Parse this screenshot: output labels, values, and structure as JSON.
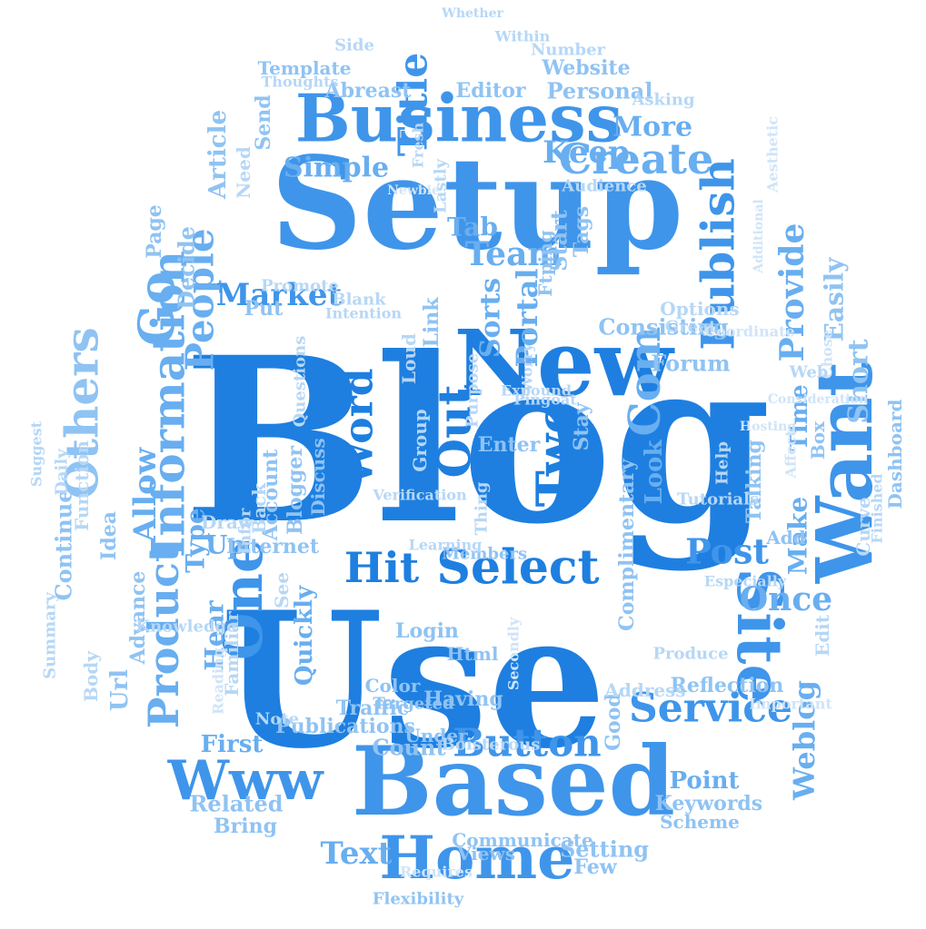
{
  "colors": {
    "background": "#ffffff",
    "c1": "#1e7fe0",
    "c2": "#3f95ea",
    "c3": "#68aef0",
    "c4": "#8fc3f3",
    "c5": "#b6d7f6",
    "c6": "#cfe4f8"
  },
  "words": {
    "blog": "Blog",
    "use": "Use",
    "setup": "Setup",
    "new": "New",
    "based": "Based",
    "business": "Business",
    "home": "Home",
    "site": "Site",
    "want": "Want",
    "www": "Www",
    "one": "One",
    "com": "Com",
    "hit": "Hit",
    "select": "Select",
    "two": "Two",
    "out": "Out",
    "word": "Word",
    "title": "Title",
    "create": "Create",
    "keep": "Keep",
    "publish": "Publish",
    "service": "Service",
    "post": "Post",
    "button": "Button",
    "information": "Information",
    "others": "Others",
    "product": "Product",
    "people": "People",
    "market": "Market",
    "allow": "Allow",
    "go": "Go",
    "simple": "Simple",
    "more": "More",
    "provide": "Provide",
    "easily": "Easily",
    "short": "Short",
    "weblog": "Weblog",
    "text": "Text",
    "team": "Team",
    "sorts": "Sorts",
    "portal": "Portal",
    "look": "Look",
    "once": "Once",
    "make": "Make",
    "time": "Time",
    "talking": "Talking",
    "point": "Point",
    "quickly": "Quickly",
    "first": "First",
    "hear": "Hear",
    "up": "Up",
    "type": "Type",
    "continue": "Continue",
    "idea": "Idea",
    "personal": "Personal",
    "editor": "Editor",
    "abreast": "Abreast",
    "website": "Website",
    "template": "Template",
    "article": "Article",
    "decide": "Decide",
    "page": "Page",
    "tab": "Tab",
    "start": "Start",
    "tags": "Tags",
    "ftping": "Ftping",
    "consisting": "Consisting",
    "forum": "Forum",
    "link": "Link",
    "internet": "Internet",
    "count": "Count",
    "related": "Related",
    "bring": "Bring",
    "publications": "Publications",
    "url": "Url",
    "advance": "Advance",
    "login": "Login",
    "html": "Html",
    "traffic": "Traffic",
    "color": "Color",
    "under": "Under",
    "having": "Having",
    "targeted": "Targeted",
    "setting": "Setting",
    "few": "Few",
    "communicate": "Communicate",
    "views": "Views",
    "flexibility": "Flexibility",
    "keywords": "Keywords",
    "scheme": "Scheme",
    "reflection": "Reflection",
    "dashboard": "Dashboard",
    "put": "Put",
    "send": "Send",
    "side": "Side",
    "number": "Number",
    "within": "Within",
    "whether": "Whether",
    "need": "Need",
    "stay": "Stay",
    "add": "Add",
    "box": "Box",
    "curve": "Curve",
    "members": "Members",
    "purpose": "Purpose",
    "tutorials": "Tutorials",
    "complimentary": "Complimentary",
    "boisterous": "Boisterous",
    "good": "Good",
    "note": "Note",
    "knowledge": "Knowledge",
    "familiar": "Familiar",
    "account": "Account",
    "blogger": "Blogger",
    "discuss": "Discuss",
    "questions": "Questions",
    "function": "Function",
    "daily": "Daily",
    "summary": "Summary",
    "suggest": "Suggest",
    "body": "Body",
    "edit": "Edit",
    "produce": "Produce",
    "address": "Address",
    "loud": "Loud",
    "options": "Options",
    "great": "Great",
    "lastly": "Lastly",
    "blank": "Blank",
    "promote": "Promote",
    "fresh": "Fresh",
    "asking": "Asking",
    "audience": "Audience",
    "thoughts": "Thoughts",
    "intention": "Intention",
    "back": "Back",
    "see": "See",
    "draw": "Draw",
    "infor": "Infor",
    "group": "Group",
    "thing": "Thing",
    "learning": "Learning",
    "expound": "Expound",
    "worry": "Worry",
    "pingoat": "Pingoat",
    "verification": "Verification",
    "especially": "Especially",
    "finished": "Finished",
    "requires": "Requires",
    "reading": "Reading",
    "important": "Important",
    "secondly": "Secondly",
    "newbie": "Newbie",
    "affect": "Affect",
    "hosting": "Hosting",
    "aesthetic": "Aesthetic",
    "additional": "Additional",
    "consideration": "Consideration",
    "coordinate": "Coordinate",
    "chose": "Chose",
    "web": "Web",
    "help": "Help",
    "enter": "Enter"
  }
}
